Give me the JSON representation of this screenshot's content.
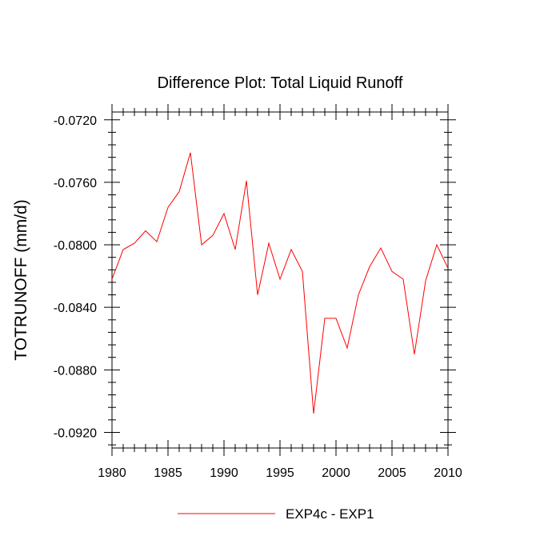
{
  "chart_data": {
    "type": "line",
    "title": "Difference Plot: Total Liquid Runoff",
    "xlabel": "",
    "ylabel": "TOTRUNOFF  (mm/d)",
    "xlim": [
      1980,
      2010
    ],
    "ylim": [
      -0.093,
      -0.0715
    ],
    "x_ticks": [
      1980,
      1985,
      1990,
      1995,
      2000,
      2005,
      2010
    ],
    "x_tick_labels": [
      "1980",
      "1985",
      "1990",
      "1995",
      "2000",
      "2005",
      "2010"
    ],
    "y_ticks": [
      -0.072,
      -0.076,
      -0.08,
      -0.084,
      -0.088,
      -0.092
    ],
    "y_tick_labels": [
      "-0.0720",
      "-0.0760",
      "-0.0800",
      "-0.0840",
      "-0.0880",
      "-0.0920"
    ],
    "grid": false,
    "legend_position": "bottom-center",
    "series": [
      {
        "name": "EXP4c - EXP1",
        "color": "#ff0000",
        "x": [
          1980,
          1981,
          1982,
          1983,
          1984,
          1985,
          1986,
          1987,
          1988,
          1989,
          1990,
          1991,
          1992,
          1993,
          1994,
          1995,
          1996,
          1997,
          1998,
          1999,
          2000,
          2001,
          2002,
          2003,
          2004,
          2005,
          2006,
          2007,
          2008,
          2009,
          2010
        ],
        "values": [
          -0.0822,
          -0.0803,
          -0.0799,
          -0.0791,
          -0.0798,
          -0.0776,
          -0.0766,
          -0.0741,
          -0.08,
          -0.0794,
          -0.078,
          -0.0803,
          -0.0759,
          -0.0832,
          -0.0799,
          -0.0822,
          -0.0803,
          -0.0817,
          -0.0908,
          -0.0847,
          -0.0847,
          -0.0866,
          -0.0832,
          -0.0814,
          -0.0802,
          -0.0817,
          -0.0822,
          -0.087,
          -0.0823,
          -0.08,
          -0.0815
        ]
      }
    ]
  }
}
